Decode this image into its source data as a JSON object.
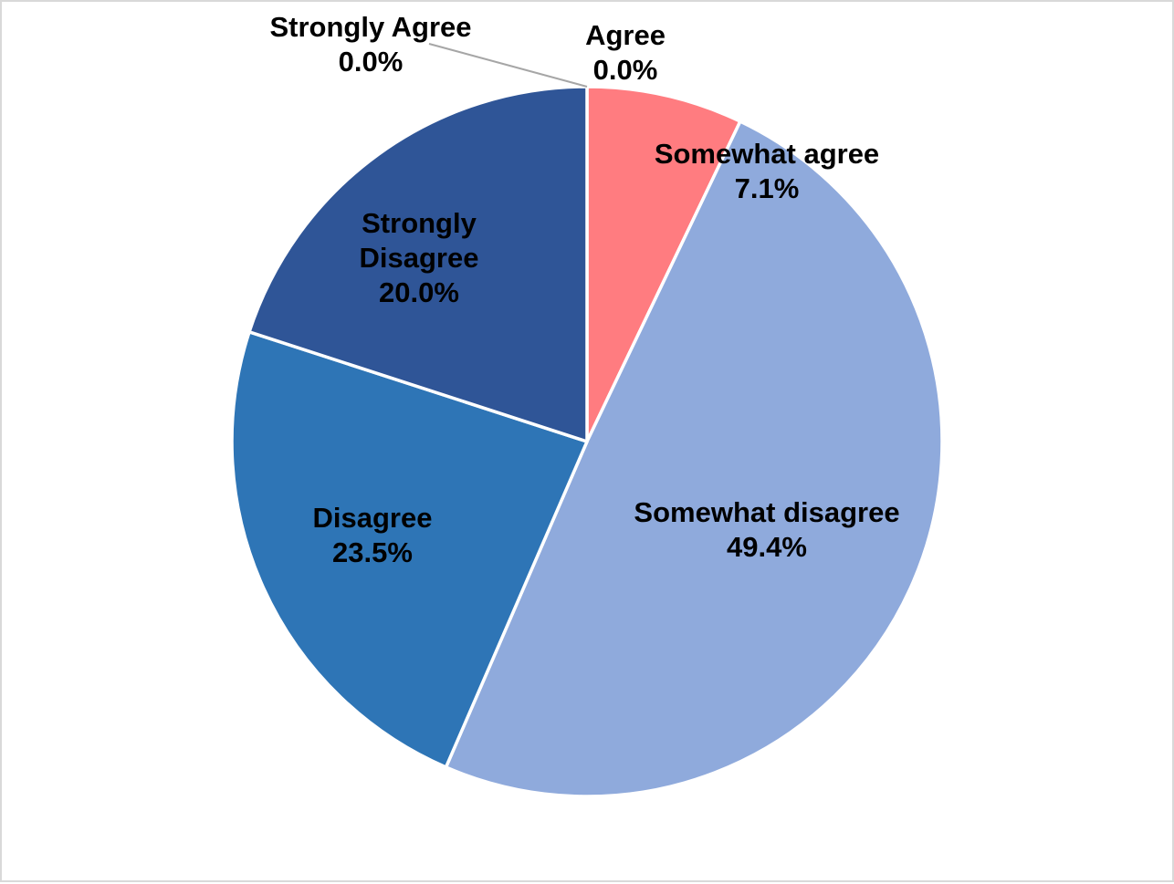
{
  "chart_data": {
    "type": "pie",
    "title": "",
    "start_angle": "12 o'clock, clockwise",
    "slices": [
      {
        "label": "Agree",
        "value": 0.0,
        "value_label": "0.0%",
        "color": "#FF7C80"
      },
      {
        "label": "Somewhat agree",
        "value": 7.1,
        "value_label": "7.1%",
        "color": "#FF7C80"
      },
      {
        "label": "Somewhat disagree",
        "value": 49.4,
        "value_label": "49.4%",
        "color": "#8FAADC"
      },
      {
        "label": "Disagree",
        "value": 23.5,
        "value_label": "23.5%",
        "color": "#2E75B6"
      },
      {
        "label": "Strongly Disagree",
        "value": 20.0,
        "value_label": "20.0%",
        "color": "#2F5597"
      },
      {
        "label": "Strongly Agree",
        "value": 0.0,
        "value_label": "0.0%",
        "color": "#C00000"
      }
    ],
    "legend": "none",
    "label_style": "category name and percentage"
  }
}
